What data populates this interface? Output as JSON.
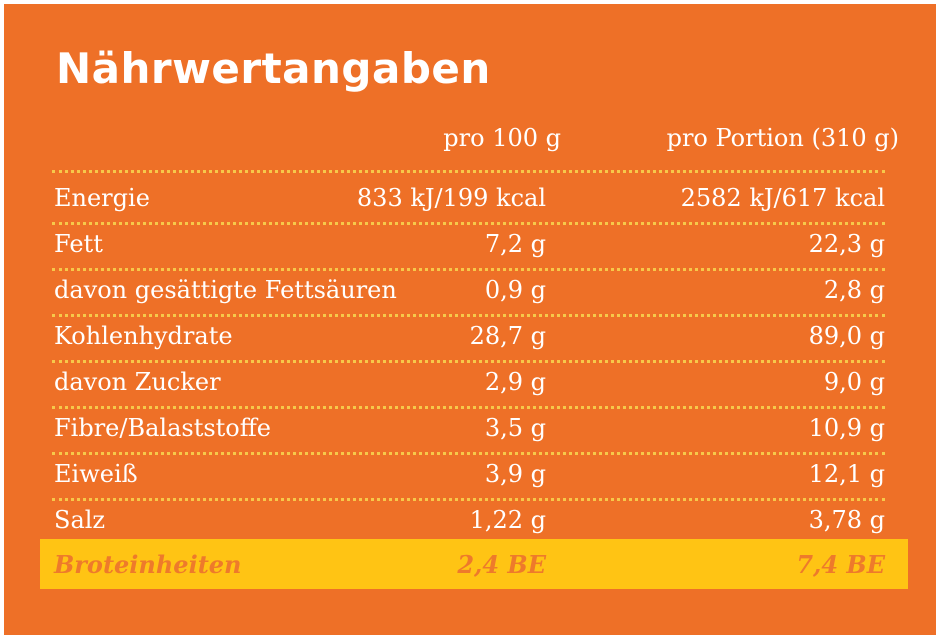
{
  "title": "Nährwertangaben",
  "headers": {
    "per100": "pro 100 g",
    "perPortion": "pro Portion (310 g)"
  },
  "rows": [
    {
      "label": "Energie",
      "per100": "833 kJ/199 kcal",
      "perPortion": "2582 kJ/617 kcal"
    },
    {
      "label": "Fett",
      "per100": "7,2 g",
      "perPortion": "22,3 g"
    },
    {
      "label": "davon gesättigte Fettsäuren",
      "per100": "0,9 g",
      "perPortion": "2,8 g"
    },
    {
      "label": "Kohlenhydrate",
      "per100": "28,7 g",
      "perPortion": "89,0 g"
    },
    {
      "label": "davon Zucker",
      "per100": "2,9 g",
      "perPortion": "9,0 g"
    },
    {
      "label": "Fibre/Balaststoffe",
      "per100": "3,5 g",
      "perPortion": "10,9 g"
    },
    {
      "label": "Eiweiß",
      "per100": "3,9 g",
      "perPortion": "12,1 g"
    },
    {
      "label": "Salz",
      "per100": "1,22 g",
      "perPortion": "3,78 g"
    },
    {
      "label": "Broteinheiten",
      "per100": "2,4 BE",
      "perPortion": "7,4 BE"
    }
  ],
  "colors": {
    "background": "#ee7027",
    "text": "#ffffff",
    "dots": "#f6c84a",
    "highlight": "#ffc414",
    "highlightText": "#ee7a2b"
  }
}
